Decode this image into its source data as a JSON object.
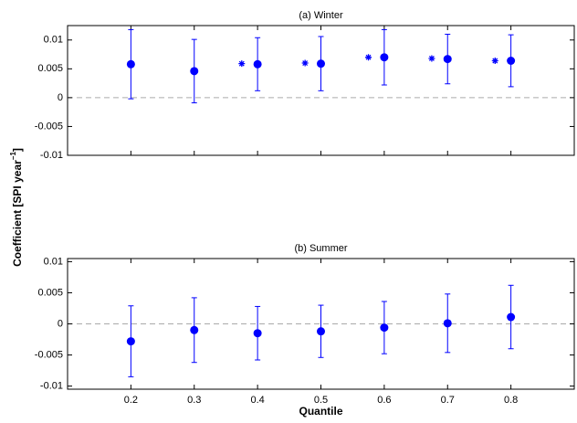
{
  "figure": {
    "ylabel": "Coefficient [SPI year",
    "ylabel_sup": "−1",
    "ylabel_end": "]"
  },
  "chart_data": [
    {
      "type": "errorbar",
      "title": "(a) Winter",
      "x": [
        0.2,
        0.3,
        0.4,
        0.5,
        0.6,
        0.7,
        0.8
      ],
      "values": [
        0.0058,
        0.0046,
        0.0058,
        0.0059,
        0.007,
        0.0067,
        0.0064
      ],
      "errors": [
        0.006,
        0.0055,
        0.0046,
        0.0047,
        0.0048,
        0.0043,
        0.0045
      ],
      "markers": {
        "x": [
          0.375,
          0.475,
          0.575,
          0.675,
          0.775
        ],
        "values": [
          0.0059,
          0.006,
          0.007,
          0.0068,
          0.0064
        ]
      },
      "color": "#0000ff",
      "xlim": [
        0.1,
        0.9
      ],
      "ylim": [
        -0.01,
        0.0125
      ],
      "xticks": [
        0.2,
        0.3,
        0.4,
        0.5,
        0.6,
        0.7,
        0.8
      ],
      "show_xticklabels": false,
      "yticks": [
        -0.01,
        -0.005,
        0,
        0.005,
        0.01
      ],
      "hline": 0
    },
    {
      "type": "errorbar",
      "title": "(b) Summer",
      "xlabel": "Quantile",
      "x": [
        0.2,
        0.3,
        0.4,
        0.5,
        0.6,
        0.7,
        0.8
      ],
      "values": [
        -0.0028,
        -0.001,
        -0.0015,
        -0.0012,
        -0.0006,
        0.0001,
        0.0011
      ],
      "errors": [
        0.0057,
        0.0052,
        0.0043,
        0.0042,
        0.0042,
        0.0047,
        0.0051
      ],
      "color": "#0000ff",
      "xlim": [
        0.1,
        0.9
      ],
      "ylim": [
        -0.0105,
        0.0105
      ],
      "xticks": [
        0.2,
        0.3,
        0.4,
        0.5,
        0.6,
        0.7,
        0.8
      ],
      "show_xticklabels": true,
      "yticks": [
        -0.01,
        -0.005,
        0,
        0.005,
        0.01
      ],
      "hline": 0
    }
  ]
}
